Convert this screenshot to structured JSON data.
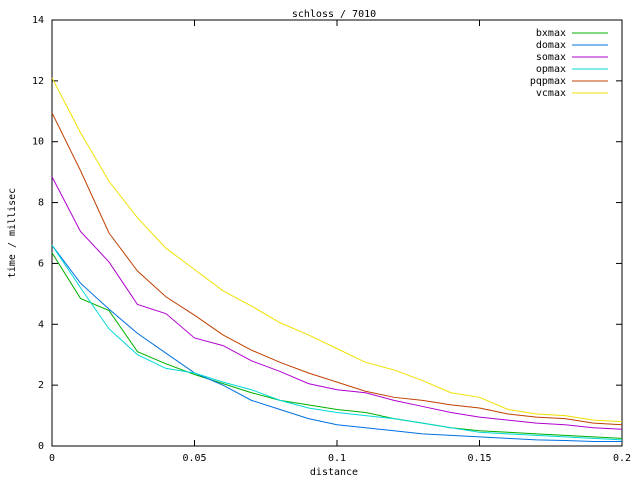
{
  "chart_data": {
    "type": "line",
    "title": "schloss / 7010",
    "x_label": "distance",
    "y_label": "time / millisec",
    "x": [
      0,
      0.01,
      0.02,
      0.03,
      0.04,
      0.05,
      0.06,
      0.07,
      0.08,
      0.09,
      0.1,
      0.11,
      0.12,
      0.13,
      0.14,
      0.15,
      0.16,
      0.17,
      0.18,
      0.19,
      0.2
    ],
    "xlim": [
      0,
      0.2
    ],
    "xticks": [
      0,
      0.05,
      0.1,
      0.15,
      0.2
    ],
    "ylim": [
      0,
      14
    ],
    "yticks": [
      0,
      2,
      4,
      6,
      8,
      10,
      12,
      14
    ],
    "grid": false,
    "legend": "top-right",
    "series": [
      {
        "name": "bxmax",
        "color": "#00b000",
        "values": [
          6.35,
          4.85,
          4.45,
          3.1,
          2.7,
          2.35,
          2.05,
          1.75,
          1.5,
          1.35,
          1.2,
          1.1,
          0.9,
          0.75,
          0.6,
          0.5,
          0.45,
          0.4,
          0.35,
          0.3,
          0.25
        ]
      },
      {
        "name": "domax",
        "color": "#0070e0",
        "values": [
          6.6,
          5.35,
          4.5,
          3.7,
          3.05,
          2.4,
          2.0,
          1.5,
          1.2,
          0.9,
          0.7,
          0.6,
          0.5,
          0.4,
          0.35,
          0.3,
          0.25,
          0.2,
          0.18,
          0.15,
          0.15
        ]
      },
      {
        "name": "somax",
        "color": "#b000d0",
        "values": [
          8.85,
          7.05,
          6.05,
          4.65,
          4.35,
          3.55,
          3.3,
          2.8,
          2.45,
          2.05,
          1.85,
          1.75,
          1.5,
          1.3,
          1.1,
          0.95,
          0.85,
          0.75,
          0.7,
          0.6,
          0.55
        ]
      },
      {
        "name": "opmax",
        "color": "#00d8d8",
        "values": [
          6.6,
          5.2,
          3.85,
          3.0,
          2.55,
          2.4,
          2.1,
          1.85,
          1.5,
          1.25,
          1.1,
          1.0,
          0.9,
          0.75,
          0.6,
          0.45,
          0.4,
          0.35,
          0.3,
          0.25,
          0.2
        ]
      },
      {
        "name": "pqpmax",
        "color": "#c04000",
        "values": [
          10.95,
          9.05,
          7.0,
          5.75,
          4.9,
          4.3,
          3.65,
          3.15,
          2.75,
          2.4,
          2.1,
          1.8,
          1.6,
          1.5,
          1.35,
          1.25,
          1.05,
          0.95,
          0.9,
          0.75,
          0.7
        ]
      },
      {
        "name": "vcmax",
        "color": "#f0e000",
        "values": [
          12.1,
          10.3,
          8.7,
          7.5,
          6.5,
          5.8,
          5.1,
          4.6,
          4.05,
          3.65,
          3.2,
          2.75,
          2.5,
          2.15,
          1.75,
          1.6,
          1.2,
          1.05,
          1.0,
          0.85,
          0.8
        ]
      }
    ]
  }
}
